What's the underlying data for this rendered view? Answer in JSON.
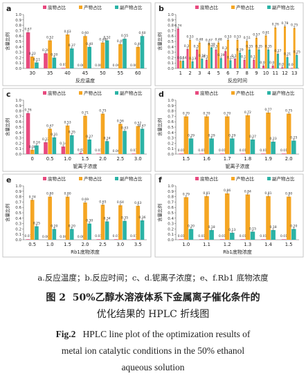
{
  "figure": {
    "subcaption": "a.反应温度；b.反应时间；c、d.铌离子浓度；e、f.Rb1 底物浓度",
    "title_cn_label": "图 2",
    "title_cn_line1": "50%乙醇水溶液体系下金属离子催化条件的",
    "title_cn_line2": "优化结果的 HPLC 折线图",
    "title_en_label": "Fig.2",
    "title_en_line1": "HPLC line plot of the optimization results of",
    "title_en_line2": "metal ion catalytic conditions in the 50% ethanol",
    "title_en_line3": "aqueous solution"
  },
  "legend": [
    "底物占比",
    "产物占比",
    "副产物占比"
  ],
  "colors": [
    "#e84a7f",
    "#f5a623",
    "#2bb3a6"
  ],
  "chart_data": [
    {
      "panel": "a",
      "type": "bar",
      "xlabel": "反应温度",
      "ylabel": "含量比例",
      "ylim": [
        0,
        1.0
      ],
      "yticks": [
        "0.0",
        "0.1",
        "0.2",
        "0.3",
        "0.4",
        "0.5",
        "0.6",
        "0.7",
        "0.8",
        "0.9",
        "1.0"
      ],
      "categories": [
        "30",
        "35",
        "40",
        "45",
        "50",
        "55",
        "60"
      ],
      "series": [
        {
          "name": "底物占比",
          "values": [
            0.67,
            0.28,
            0.01,
            0.0,
            0.0,
            0.0,
            0.0
          ]
        },
        {
          "name": "产物占比",
          "values": [
            0.22,
            0.52,
            0.63,
            0.6,
            0.48,
            0.45,
            0.4
          ]
        },
        {
          "name": "副产物占比",
          "values": [
            0.11,
            0.2,
            0.37,
            0.4,
            0.52,
            0.55,
            0.6
          ]
        }
      ]
    },
    {
      "panel": "b",
      "type": "bar",
      "xlabel": "反应时间",
      "ylabel": "含量比例",
      "ylim": [
        0,
        1.0
      ],
      "yticks": [
        "0.0",
        "0.1",
        "0.2",
        "0.3",
        "0.4",
        "0.5",
        "0.6",
        "0.7",
        "0.8",
        "0.9",
        "1.0"
      ],
      "categories": [
        "1",
        "2",
        "3",
        "4",
        "5",
        "6",
        "7",
        "8",
        "9",
        "10",
        "11",
        "12",
        "13"
      ],
      "series": [
        {
          "name": "底物占比",
          "values": [
            0.74,
            0.36,
            0.35,
            0.16,
            0.35,
            0.32,
            0.18,
            0.16,
            0.16,
            0.05,
            0.05,
            0.02,
            0.01
          ]
        },
        {
          "name": "产物占比",
          "values": [
            0.14,
            0.53,
            0.48,
            0.47,
            0.48,
            0.53,
            0.53,
            0.51,
            0.57,
            0.61,
            0.76,
            0.78,
            0.75
          ]
        },
        {
          "name": "副产物占比",
          "values": [
            0.14,
            0.13,
            0.18,
            0.39,
            0.19,
            0.15,
            0.29,
            0.35,
            0.35,
            0.35,
            0.27,
            0.21,
            0.25
          ]
        }
      ]
    },
    {
      "panel": "c",
      "type": "bar",
      "xlabel": "铌离子浓度",
      "ylabel": "含量比例",
      "ylim": [
        0,
        1.0
      ],
      "yticks": [
        "0.0",
        "0.1",
        "0.2",
        "0.3",
        "0.4",
        "0.5",
        "0.6",
        "0.7",
        "0.8",
        "0.9",
        "1.0"
      ],
      "categories": [
        "0",
        "0.5",
        "1.0",
        "1.5",
        "2.0",
        "2.5",
        "3.0"
      ],
      "series": [
        {
          "name": "底物占比",
          "values": [
            0.76,
            0.22,
            0.14,
            0.02,
            0.01,
            0.0,
            0.01
          ]
        },
        {
          "name": "产物占比",
          "values": [
            0.08,
            0.47,
            0.53,
            0.71,
            0.75,
            0.56,
            0.52
          ]
        },
        {
          "name": "副产物占比",
          "values": [
            0.16,
            0.31,
            0.35,
            0.27,
            0.24,
            0.43,
            0.47
          ]
        }
      ]
    },
    {
      "panel": "d",
      "type": "bar",
      "xlabel": "铌离子浓度",
      "ylabel": "含量比例",
      "ylim": [
        0,
        1.0
      ],
      "yticks": [
        "0.0",
        "0.1",
        "0.2",
        "0.3",
        "0.4",
        "0.5",
        "0.6",
        "0.7",
        "0.8",
        "0.9",
        "1.0"
      ],
      "categories": [
        "1.5",
        "1.6",
        "1.7",
        "1.8",
        "1.9",
        "2.0"
      ],
      "series": [
        {
          "name": "底物占比",
          "values": [
            0.01,
            0.01,
            0.01,
            0.01,
            0.01,
            0.01
          ]
        },
        {
          "name": "产物占比",
          "values": [
            0.7,
            0.7,
            0.7,
            0.72,
            0.77,
            0.75
          ]
        },
        {
          "name": "副产物占比",
          "values": [
            0.29,
            0.29,
            0.29,
            0.27,
            0.23,
            0.25
          ]
        }
      ]
    },
    {
      "panel": "e",
      "type": "bar",
      "xlabel": "Rb1底物浓度",
      "ylabel": "含量比例",
      "ylim": [
        0,
        1.0
      ],
      "yticks": [
        "0.0",
        "0.1",
        "0.2",
        "0.3",
        "0.4",
        "0.5",
        "0.6",
        "0.7",
        "0.8",
        "0.9",
        "1.0"
      ],
      "categories": [
        "0.5",
        "1.0",
        "1.5",
        "2.0",
        "2.5",
        "3.0",
        "3.5"
      ],
      "series": [
        {
          "name": "底物占比",
          "values": [
            0.01,
            0.0,
            0.0,
            0.0,
            0.01,
            0.01,
            0.01
          ]
        },
        {
          "name": "产物占比",
          "values": [
            0.74,
            0.8,
            0.8,
            0.69,
            0.65,
            0.64,
            0.63
          ]
        },
        {
          "name": "副产物占比",
          "values": [
            0.25,
            0.2,
            0.2,
            0.3,
            0.34,
            0.35,
            0.36
          ]
        }
      ]
    },
    {
      "panel": "f",
      "type": "bar",
      "xlabel": "Rb1底物浓度",
      "ylabel": "含量比例",
      "ylim": [
        0,
        1.0
      ],
      "yticks": [
        "0.0",
        "0.1",
        "0.2",
        "0.3",
        "0.4",
        "0.5",
        "0.6",
        "0.7",
        "0.8",
        "0.9",
        "1.0"
      ],
      "categories": [
        "1.0",
        "1.1",
        "1.2",
        "1.3",
        "1.4",
        "1.5"
      ],
      "series": [
        {
          "name": "底物占比",
          "values": [
            0.01,
            0.01,
            0.01,
            0.01,
            0.01,
            0.01
          ]
        },
        {
          "name": "产物占比",
          "values": [
            0.79,
            0.81,
            0.86,
            0.84,
            0.81,
            0.8
          ]
        },
        {
          "name": "副产物占比",
          "values": [
            0.2,
            0.18,
            0.13,
            0.15,
            0.18,
            0.2
          ]
        }
      ]
    }
  ]
}
